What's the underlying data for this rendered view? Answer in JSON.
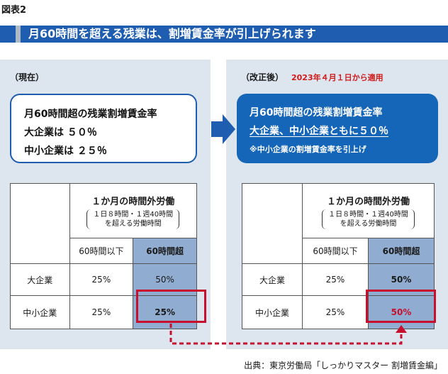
{
  "figure_label": "図表2",
  "title": "月60時間を超える残業は、割増賃金率が引上げられます",
  "left": {
    "tag": "（現在）",
    "box_lines": [
      "月60時間超の残業割増賃金率",
      "大企業は ５０％",
      "中小企業は ２５％"
    ],
    "table": {
      "header_main": "１か月の時間外労働",
      "header_sub_1": "１日８時間・１週40時間",
      "header_sub_2": "を超える労働時間",
      "col1": "60時間以下",
      "col2": "60時間超",
      "rows": [
        {
          "label": "大企業",
          "v1": "25%",
          "v2": "50%"
        },
        {
          "label": "中小企業",
          "v1": "25%",
          "v2": "25%"
        }
      ]
    }
  },
  "right": {
    "tag": "（改正後）",
    "date": "2023年４月１日から適用",
    "box_lines": [
      "月60時間超の残業割増賃金率",
      "大企業、中小企業ともに５０％",
      "※中小企業の割増賃金率を引上げ"
    ],
    "table": {
      "header_main": "１か月の時間外労働",
      "header_sub_1": "１日８時間・１週40時間",
      "header_sub_2": "を超える労働時間",
      "col1": "60時間以下",
      "col2": "60時間超",
      "rows": [
        {
          "label": "大企業",
          "v1": "25%",
          "v2": "50%"
        },
        {
          "label": "中小企業",
          "v1": "25%",
          "v2": "50%"
        }
      ]
    }
  },
  "source": "出典：東京労働局「しっかりマスター 割増賃金編」",
  "colors": {
    "title_band": "#1f5db0",
    "panel": "#dde5ef",
    "highlight_cell": "#90acd0",
    "emphasis_red": "#c8102e",
    "date_red": "#d11a1a"
  }
}
